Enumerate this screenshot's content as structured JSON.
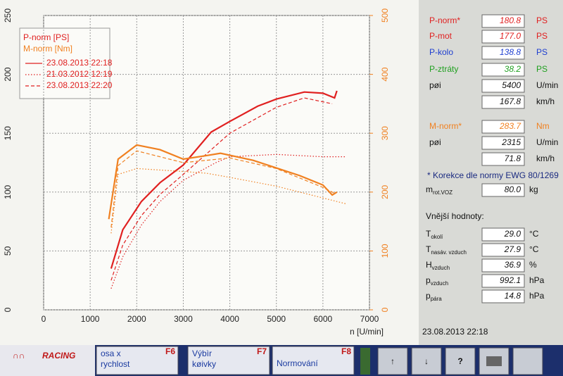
{
  "chart_data": {
    "type": "line",
    "legend_headers": [
      "P-norm [PS]",
      "M-norm [Nm]"
    ],
    "x_label": "n [U/min]",
    "xlim": [
      0,
      7000
    ],
    "xticks": [
      0,
      1000,
      2000,
      3000,
      4000,
      5000,
      6000,
      7000
    ],
    "ylim": [
      0,
      250
    ],
    "yticks": [
      0,
      50,
      100,
      150,
      200,
      250
    ],
    "y2lim": [
      0,
      500
    ],
    "y2ticks": [
      0,
      100,
      200,
      300,
      400,
      500
    ],
    "grid": true,
    "series": [
      {
        "name": "23.08.2013 22:18",
        "color": "#e02020",
        "dash": "solid",
        "x": [
          1450,
          1700,
          2100,
          2500,
          3000,
          3600,
          4000,
          4600,
          5000,
          5600,
          6000,
          6250,
          6300
        ],
        "values": [
          35,
          68,
          92,
          108,
          123,
          151,
          160,
          173,
          179,
          185,
          184,
          180,
          186
        ]
      },
      {
        "name": "21.03.2012 12:19",
        "color": "#e02020",
        "dash": "dotted",
        "x": [
          1450,
          1700,
          2100,
          2500,
          3000,
          3700,
          4000,
          5000,
          6000,
          6500
        ],
        "values": [
          18,
          45,
          72,
          92,
          110,
          125,
          130,
          132,
          130,
          130
        ]
      },
      {
        "name": "23.08.2013 22:20",
        "color": "#e02020",
        "dash": "dashed",
        "x": [
          1450,
          1700,
          2100,
          2500,
          3000,
          4000,
          5000,
          5600,
          6200
        ],
        "values": [
          25,
          55,
          80,
          98,
          115,
          150,
          172,
          180,
          175
        ]
      },
      {
        "color": "#f08020",
        "dash": "solid",
        "axis": "y2",
        "x": [
          1400,
          1600,
          2000,
          2500,
          3000,
          3500,
          3800,
          4500,
          5000,
          5500,
          6000,
          6200,
          6300
        ],
        "values": [
          154,
          256,
          280,
          272,
          256,
          262,
          266,
          254,
          241,
          228,
          212,
          195,
          200
        ]
      },
      {
        "color": "#f08020",
        "dash": "dotted",
        "axis": "y2",
        "x": [
          1450,
          1600,
          2000,
          3000,
          3500,
          4000,
          5000,
          6000,
          6500
        ],
        "values": [
          130,
          230,
          240,
          235,
          232,
          225,
          210,
          190,
          180
        ]
      },
      {
        "color": "#f08020",
        "dash": "dashed",
        "axis": "y2",
        "x": [
          1450,
          1600,
          2000,
          3000,
          4000,
          5000,
          6000,
          6250
        ],
        "values": [
          140,
          245,
          270,
          250,
          258,
          240,
          208,
          198
        ]
      }
    ]
  },
  "panel": {
    "rows": [
      {
        "label": "P-norm*",
        "value": "180.8",
        "unit": "PS",
        "color": "#e02020"
      },
      {
        "label": "P-mot",
        "value": "177.0",
        "unit": "PS",
        "color": "#e02020"
      },
      {
        "label": "P-kolo",
        "value": "138.8",
        "unit": "PS",
        "color": "#2040d0"
      },
      {
        "label": "P-ztráty",
        "value": "38.2",
        "unit": "PS",
        "color": "#20a020"
      },
      {
        "label": "pøi",
        "value": "5400",
        "unit": "U/min",
        "color": "#111111"
      },
      {
        "value": "167.8",
        "unit": "km/h",
        "color": "#111111"
      },
      {
        "label": "M-norm*",
        "value": "283.7",
        "unit": "Nm",
        "color": "#f08020"
      },
      {
        "label": "pøi",
        "value": "2315",
        "unit": "U/min",
        "color": "#111111"
      },
      {
        "value": "71.8",
        "unit": "km/h",
        "color": "#111111"
      }
    ],
    "note": "* Korekce dle normy EWG 80/1269",
    "mass": {
      "label": "m",
      "sub": "rot.VOZ",
      "value": "80.0",
      "unit": "kg"
    },
    "section": "Vnější hodnoty:",
    "ambient": [
      {
        "label": "T",
        "sub": "okolí",
        "value": "29.0",
        "unit": "°C"
      },
      {
        "label": "T",
        "sub": "nasáv. vzduch",
        "value": "27.9",
        "unit": "°C"
      },
      {
        "label": "H",
        "sub": "vzduch",
        "value": "36.9",
        "unit": "%"
      },
      {
        "label": "p",
        "sub": "vzduch",
        "value": "992.1",
        "unit": "hPa"
      },
      {
        "label": "p",
        "sub": "pára",
        "value": "14.8",
        "unit": "hPa"
      }
    ],
    "timestamp": "23.08.2013  22:18"
  },
  "toolbar": {
    "logo": "RACING",
    "buttons": [
      {
        "lines": [
          "osa x",
          "rychlost"
        ],
        "key": "F6"
      },
      {
        "lines": [
          "Výbìr",
          "køivky"
        ],
        "key": "F7"
      },
      {
        "lines": [
          "Normování"
        ],
        "key": "F8"
      }
    ],
    "icons": [
      "↑",
      "↓",
      "?"
    ]
  }
}
